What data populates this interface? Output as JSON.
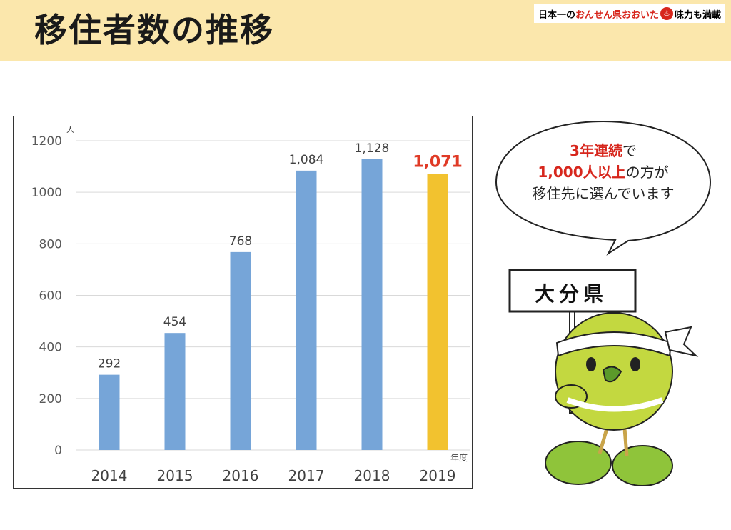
{
  "page": {
    "title": "移住者数の推移",
    "brand": {
      "text1": "日本一の",
      "text2": "おんせん県おおいた",
      "icon_char": "♨",
      "text3": "味力も満載"
    }
  },
  "bubble": {
    "line1_hl": "3年連続",
    "line1_rest": "で",
    "line2_hl": "1,000人以上",
    "line2_rest": "の方が",
    "line3": "移住先に選んでいます"
  },
  "sign": {
    "text": "大分県"
  },
  "colors": {
    "bar": "#76a5d8",
    "highlight_bar": "#f2c22f",
    "highlight_label": "#e03a26",
    "header_bg": "#fbe7ac"
  },
  "chart_data": {
    "type": "bar",
    "categories": [
      "2014",
      "2015",
      "2016",
      "2017",
      "2018",
      "2019"
    ],
    "values": [
      292,
      454,
      768,
      1084,
      1128,
      1071
    ],
    "data_labels": [
      "292",
      "454",
      "768",
      "1,084",
      "1,128",
      "1,071"
    ],
    "highlight_index": 5,
    "y_unit": "人",
    "x_unit": "年度",
    "ylim": [
      0,
      1200
    ],
    "yticks": [
      0,
      200,
      400,
      600,
      800,
      1000,
      1200
    ],
    "grid": true,
    "legend": "none"
  }
}
